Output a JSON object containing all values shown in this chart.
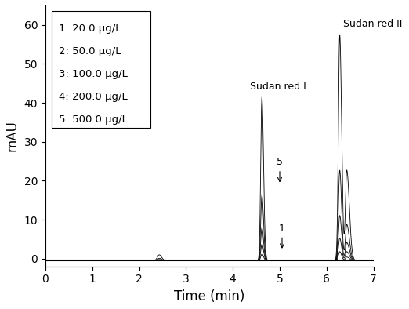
{
  "xlabel": "Time (min)",
  "ylabel": "mAU",
  "xlim": [
    0,
    7
  ],
  "ylim": [
    -2,
    65
  ],
  "yticks": [
    0,
    10,
    20,
    30,
    40,
    50,
    60
  ],
  "xticks": [
    0,
    1,
    2,
    3,
    4,
    5,
    6,
    7
  ],
  "legend_labels": [
    "1: 20.0 μg/L",
    "2: 50.0 μg/L",
    "3: 100.0 μg/L",
    "4: 200.0 μg/L",
    "5: 500.0 μg/L"
  ],
  "concentrations": [
    20.0,
    50.0,
    100.0,
    200.0,
    500.0
  ],
  "sudan_red_I_peak_time": 4.62,
  "sudan_red_II_peak_time": 6.28,
  "sudan_red_II_peak2_time": 6.43,
  "small_peak_time": 2.43,
  "small_peak_height": 1.5,
  "annotation_sudan_I": "Sudan red I",
  "annotation_sudan_II": "Sudan red II",
  "line_color": "#000000",
  "background_color": "#ffffff",
  "axis_fontsize": 12,
  "tick_fontsize": 10,
  "legend_fontsize": 9.5
}
